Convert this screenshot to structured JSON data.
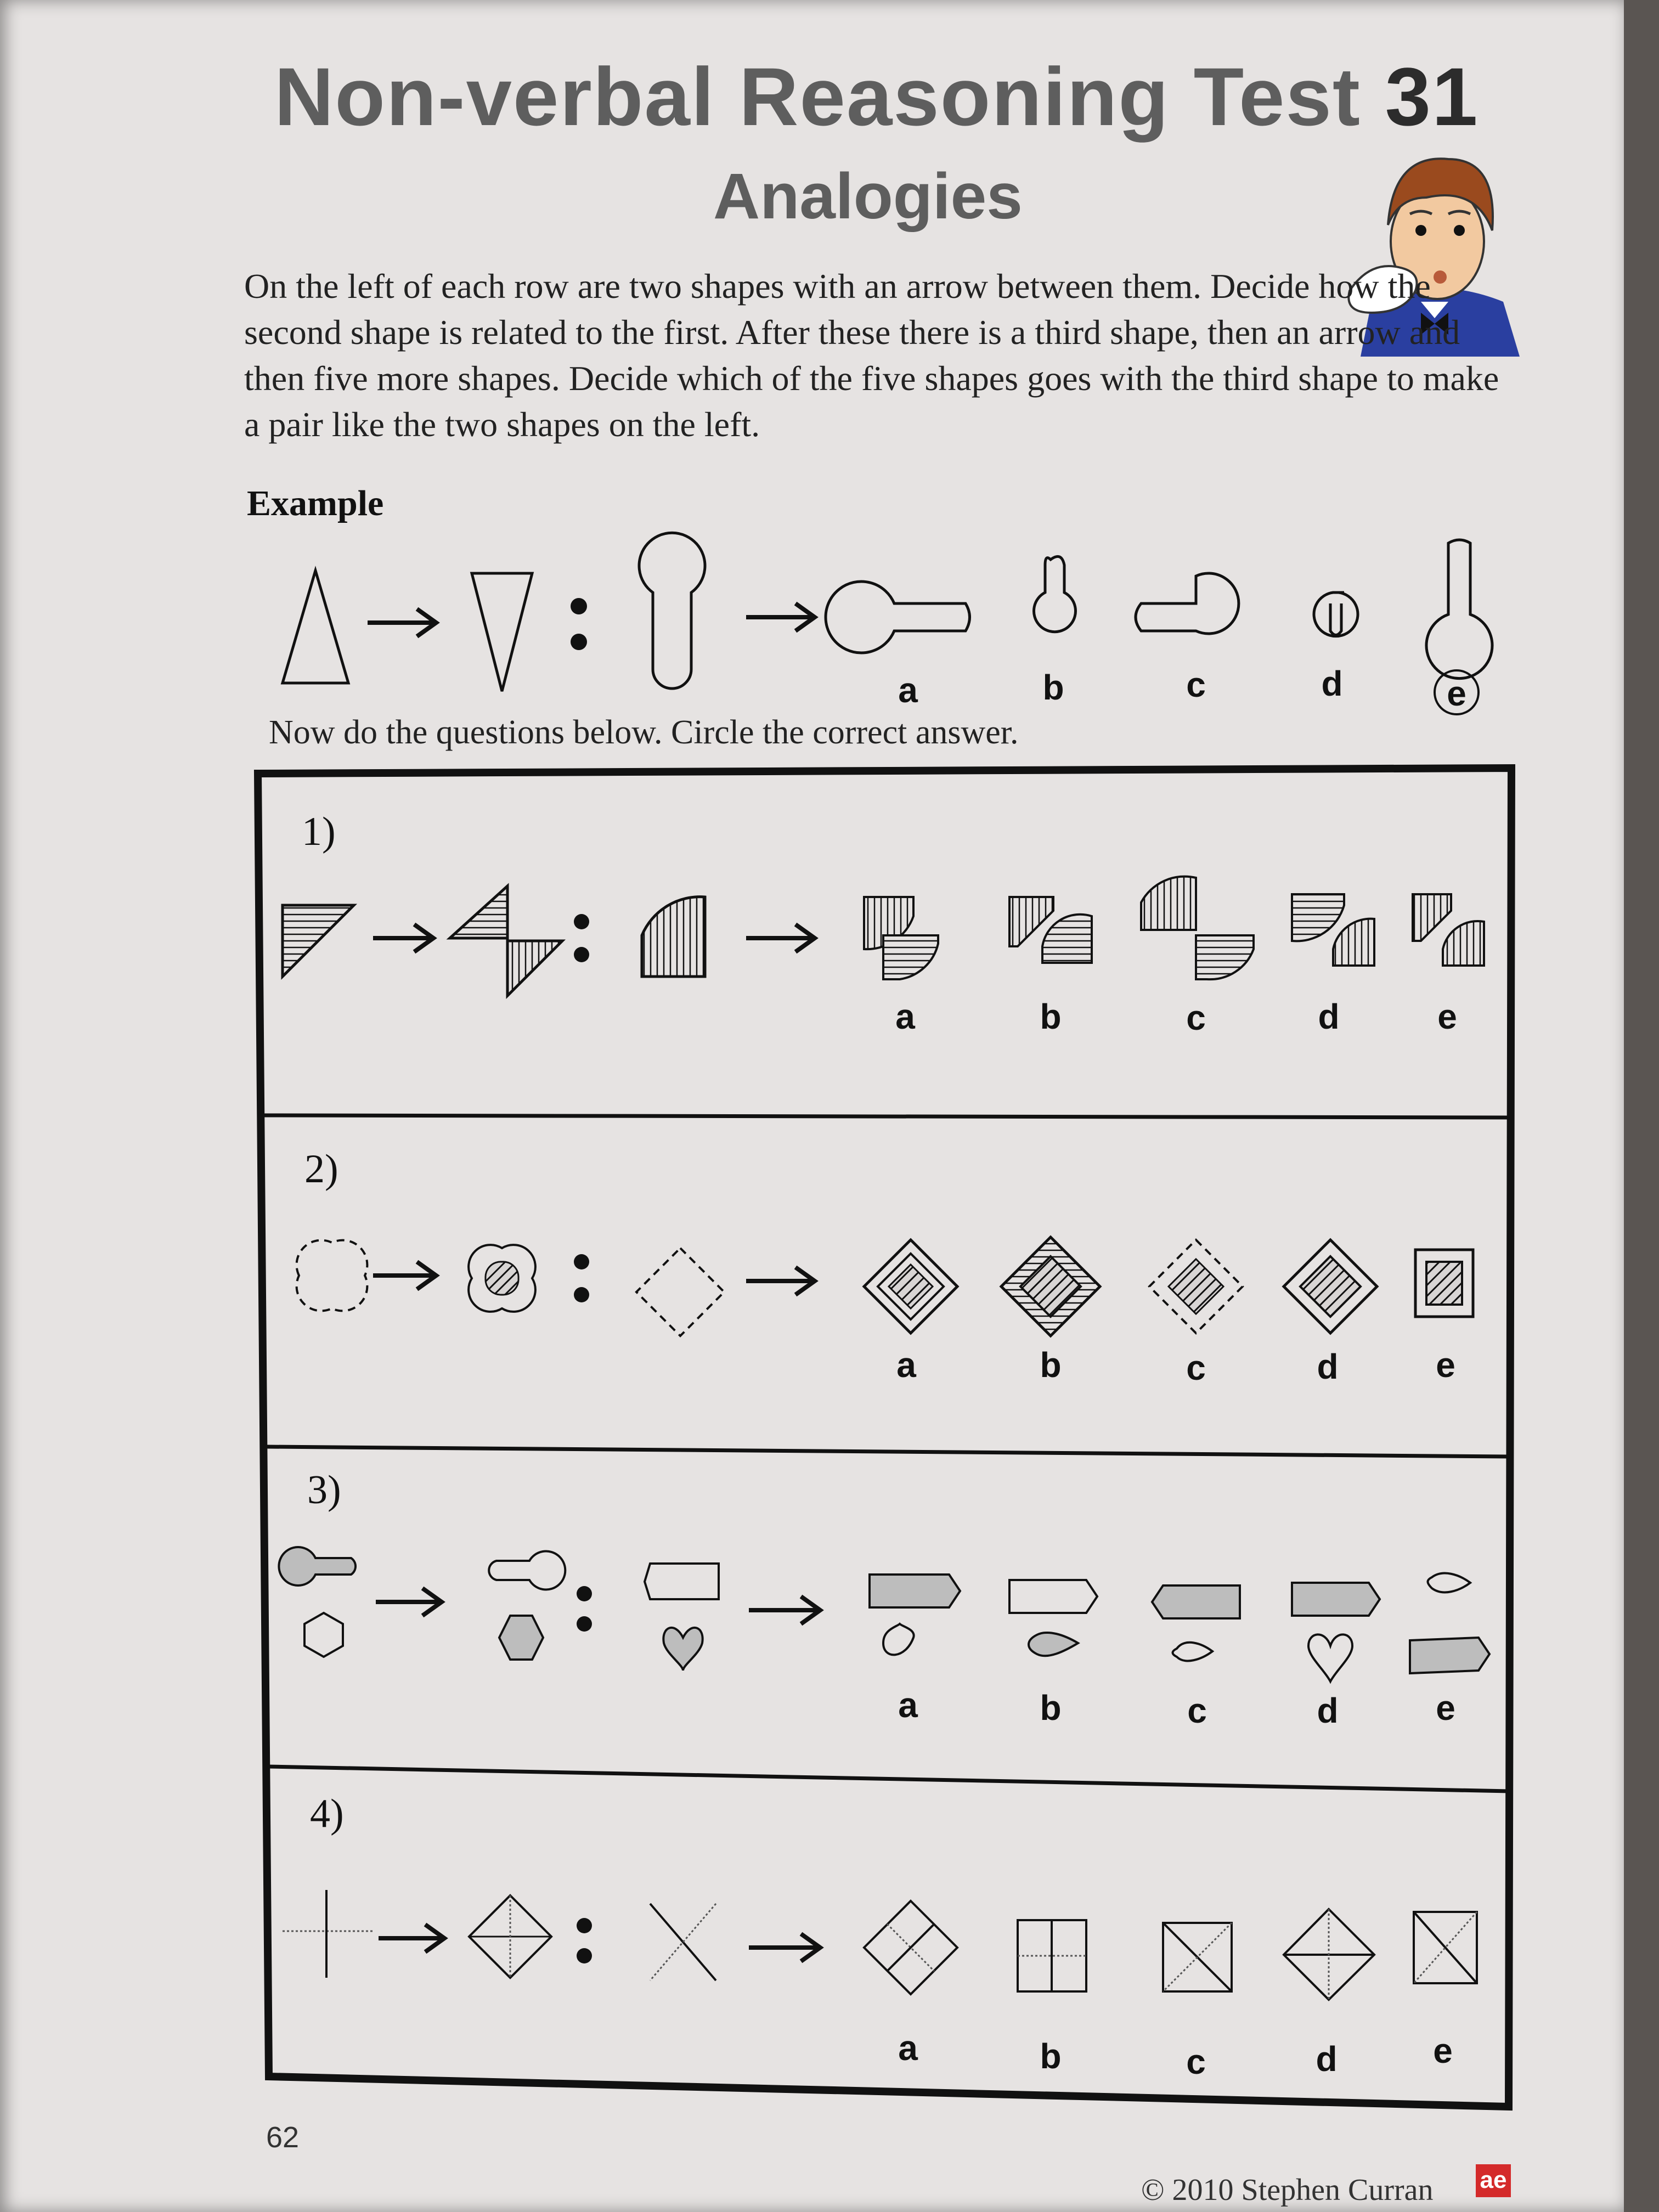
{
  "title": {
    "main": "Non-verbal Reasoning Test",
    "number": "31"
  },
  "subtitle": "Analogies",
  "instructions": "On the left of each row are two shapes with an arrow between them. Decide how the second shape is related to the first. After these there is a third shape, then an arrow and then five more shapes. Decide which of the five shapes goes with the third shape to make a pair like the two shapes on the left.",
  "example": {
    "label": "Example",
    "options": [
      "a",
      "b",
      "c",
      "d",
      "e"
    ],
    "answer": "e"
  },
  "now_do": "Now do the questions below. Circle the correct answer.",
  "questions": [
    {
      "number": "1)",
      "options": [
        "a",
        "b",
        "c",
        "d",
        "e"
      ]
    },
    {
      "number": "2)",
      "options": [
        "a",
        "b",
        "c",
        "d",
        "e"
      ]
    },
    {
      "number": "3)",
      "options": [
        "a",
        "b",
        "c",
        "d",
        "e"
      ]
    },
    {
      "number": "4)",
      "options": [
        "a",
        "b",
        "c",
        "d",
        "e"
      ]
    }
  ],
  "page_number": "62",
  "copyright": "© 2010 Stephen Curran",
  "logo_text": "ae"
}
